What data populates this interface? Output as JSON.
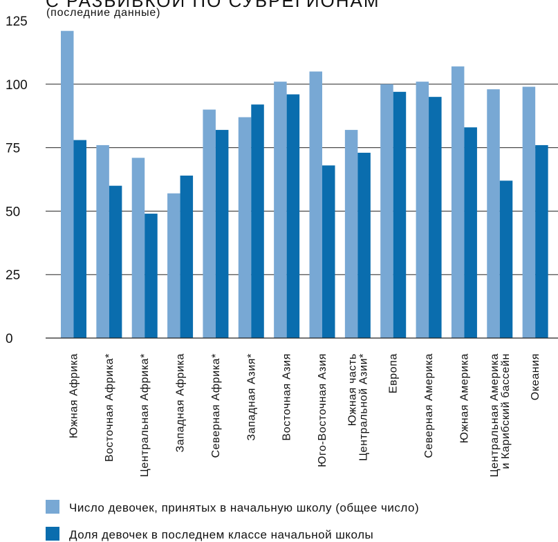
{
  "title": "С РАЗБИВКОЙ ПО СУБРЕГИОНАМ",
  "subtitle": "(последние данные)",
  "chart_data": {
    "type": "bar",
    "title": "С РАЗБИВКОЙ ПО СУБРЕГИОНАМ",
    "subtitle": "(последние данные)",
    "xlabel": "",
    "ylabel": "",
    "ylim": [
      0,
      125
    ],
    "yticks": [
      0,
      25,
      50,
      75,
      100,
      125
    ],
    "grid": true,
    "legend": "bottom",
    "categories": [
      [
        "Южная Африка"
      ],
      [
        "Восточная Африка*"
      ],
      [
        "Центральная Африка*"
      ],
      [
        "Западная Африка"
      ],
      [
        "Северная Африка*"
      ],
      [
        "Западная Азия*"
      ],
      [
        "Восточная Азия"
      ],
      [
        "Юго-Восточная Азия"
      ],
      [
        "Южная часть",
        "Центральной Азии*"
      ],
      [
        "Европа"
      ],
      [
        "Северная Америка"
      ],
      [
        "Южная Америка"
      ],
      [
        "Центральная Америка",
        "и Карибский бассейн"
      ],
      [
        "Океания"
      ]
    ],
    "series": [
      {
        "name": "Число девочек, принятых в начальную школу (общее число)",
        "color": "#78A8D4",
        "values": [
          121,
          76,
          71,
          57,
          90,
          87,
          101,
          105,
          82,
          100,
          101,
          107,
          98,
          99
        ]
      },
      {
        "name": "Доля девочек в последнем классе начальной школы",
        "color": "#0A6DAE",
        "values": [
          78,
          60,
          49,
          64,
          82,
          92,
          96,
          68,
          73,
          97,
          95,
          83,
          62,
          76
        ]
      }
    ]
  }
}
